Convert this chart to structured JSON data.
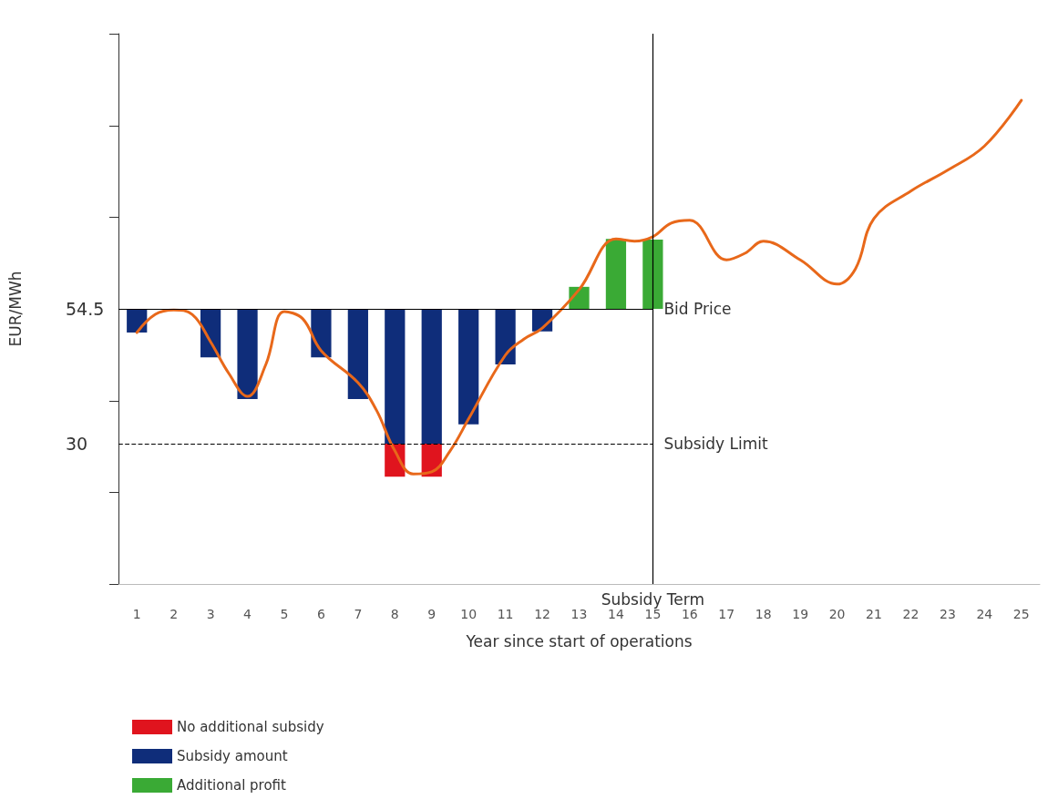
{
  "chart_data": {
    "type": "bar",
    "xlabel": "Year since start of operations",
    "ylabel": "EUR/MWh",
    "xlim": [
      0.5,
      25.5
    ],
    "xticks": [
      1,
      2,
      3,
      4,
      5,
      6,
      7,
      8,
      9,
      10,
      11,
      12,
      13,
      14,
      15,
      16,
      17,
      18,
      19,
      20,
      21,
      22,
      23,
      24,
      25
    ],
    "ylim": [
      4.5,
      104.5
    ],
    "yticks": [
      {
        "value": 4.5,
        "label": null
      },
      {
        "value": 21.2,
        "label": null
      },
      30,
      {
        "value": 37.8,
        "label": null
      },
      54.5,
      {
        "value": 71.2,
        "label": null
      },
      {
        "value": 87.8,
        "label": null
      },
      {
        "value": 104.5,
        "label": null
      }
    ],
    "series": [
      {
        "name": "No additional subsidy",
        "color": "#e0141e",
        "x": [
          8,
          9
        ],
        "base": [
          30,
          30
        ],
        "values": [
          -6,
          -6
        ]
      },
      {
        "name": "Subsidy amount",
        "color": "#0f2d7a",
        "x": [
          1,
          3,
          4,
          6,
          7,
          8,
          9,
          10,
          11,
          12
        ],
        "base": [
          54.5,
          54.5,
          54.5,
          54.5,
          54.5,
          54.5,
          54.5,
          54.5,
          54.5,
          54.5
        ],
        "values": [
          -4.3,
          -8.8,
          -16.4,
          -8.8,
          -16.4,
          -24.5,
          -24.5,
          -21,
          -10.1,
          -4.1
        ]
      },
      {
        "name": "Additional profit",
        "color": "#3aaa35",
        "x": [
          13,
          14,
          15
        ],
        "base": [
          54.5,
          54.5,
          54.5
        ],
        "values": [
          4,
          12.7,
          12.6
        ]
      },
      {
        "type": "line",
        "color": "#e8681a",
        "marker": "none",
        "x": [
          1,
          1.5,
          2,
          2.5,
          3,
          3.5,
          4,
          4.5,
          5,
          5.5,
          6,
          7,
          7.5,
          8,
          8.5,
          9,
          9.5,
          10,
          11,
          11.5,
          12,
          13,
          14,
          14.5,
          15,
          15.5,
          16,
          17,
          17.5,
          18,
          19,
          20,
          20.5,
          21,
          22,
          23,
          24,
          25
        ],
        "values": [
          50.2,
          53.5,
          54.3,
          53.5,
          48.5,
          42.7,
          38.6,
          44.4,
          54,
          52.7,
          46.9,
          41.1,
          36.1,
          28.7,
          24.5,
          24.9,
          28.7,
          34.5,
          46.1,
          49,
          51,
          58,
          67.2,
          66.8,
          67.6,
          70.1,
          70.6,
          63.4,
          64.6,
          66.8,
          63.4,
          59,
          61.8,
          70.9,
          75.9,
          79.7,
          84.1,
          92.4
        ]
      }
    ],
    "ref_lines": [
      {
        "axis": "x",
        "value": 15,
        "label": "Subsidy Term",
        "color": "#000000",
        "line_style": "solid"
      },
      {
        "axis": "y",
        "value": 54.5,
        "label": "Bid Price",
        "color": "#000000",
        "line_style": "solid"
      },
      {
        "axis": "y",
        "value": 30,
        "label": "Subsidy Limit",
        "color": "#000000",
        "line_style": "dashed"
      }
    ],
    "grid": false,
    "legend": "bottom left"
  }
}
